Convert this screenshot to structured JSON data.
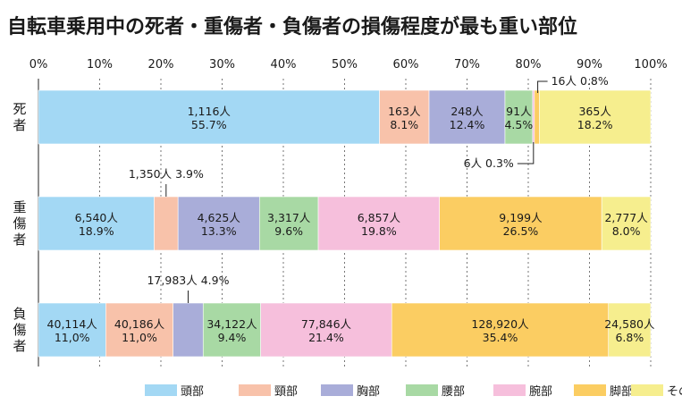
{
  "chart_data": {
    "type": "bar",
    "orientation": "horizontal",
    "stacked": "percent",
    "title": "自転車乗用中の死者・重傷者・負傷者の損傷程度が最も重い部位",
    "xlabel": "",
    "ylabel": "",
    "xlim": [
      0,
      100
    ],
    "x_ticks": [
      "0%",
      "10%",
      "20%",
      "30%",
      "40%",
      "50%",
      "60%",
      "70%",
      "80%",
      "90%",
      "100%"
    ],
    "grid": true,
    "legend_position": "bottom-right",
    "categories": [
      {
        "label": "死者",
        "chars": [
          "死",
          "者"
        ]
      },
      {
        "label": "重傷者",
        "chars": [
          "重",
          "傷",
          "者"
        ]
      },
      {
        "label": "負傷者",
        "chars": [
          "負",
          "傷",
          "者"
        ]
      }
    ],
    "series": [
      {
        "name": "頭部",
        "color": "#a3d8f4",
        "counts": [
          "1,116人",
          "6,540人",
          "40,114人"
        ],
        "percents": [
          55.7,
          18.9,
          11.0
        ],
        "percent_labels": [
          "55.7%",
          "18.9%",
          "11,0%"
        ]
      },
      {
        "name": "頸部",
        "color": "#f8c2aa",
        "counts": [
          "163人",
          "1,350人",
          "40,186人"
        ],
        "percents": [
          8.1,
          3.9,
          11.0
        ],
        "percent_labels": [
          "8.1%",
          "3.9%",
          "11,0%"
        ]
      },
      {
        "name": "胸部",
        "color": "#a9add9",
        "counts": [
          "248人",
          "4,625人",
          "17,983人"
        ],
        "percents": [
          12.4,
          13.3,
          4.9
        ],
        "percent_labels": [
          "12.4%",
          "13.3%",
          "4.9%"
        ]
      },
      {
        "name": "腰部",
        "color": "#a8d9a4",
        "counts": [
          "91人",
          "3,317人",
          "34,122人"
        ],
        "percents": [
          4.5,
          9.6,
          9.4
        ],
        "percent_labels": [
          "4.5%",
          "9.6%",
          "9.4%"
        ]
      },
      {
        "name": "腕部",
        "color": "#f6bfdc",
        "counts": [
          "6人",
          "6,857人",
          "77,846人"
        ],
        "percents": [
          0.3,
          19.8,
          21.4
        ],
        "percent_labels": [
          "0.3%",
          "19.8%",
          "21.4%"
        ]
      },
      {
        "name": "脚部",
        "color": "#fbcd62",
        "counts": [
          "16人",
          "9,199人",
          "128,920人"
        ],
        "percents": [
          0.8,
          26.5,
          35.4
        ],
        "percent_labels": [
          "0.8%",
          "26.5%",
          "35.4%"
        ]
      },
      {
        "name": "その他",
        "color": "#f6ee8e",
        "counts": [
          "365人",
          "2,777人",
          "24,580人"
        ],
        "percents": [
          18.2,
          8.0,
          6.8
        ],
        "percent_labels": [
          "18.2%",
          "8.0%",
          "6.8%"
        ]
      }
    ],
    "callouts": [
      {
        "category": 0,
        "series": 5,
        "text": "16人 0.8%",
        "side": "above"
      },
      {
        "category": 0,
        "series": 4,
        "text": "6人 0.3%",
        "side": "below"
      },
      {
        "category": 1,
        "series": 1,
        "text": "1,350人 3.9%",
        "side": "above"
      },
      {
        "category": 2,
        "series": 2,
        "text": "17,983人  4.9%",
        "side": "above"
      }
    ]
  }
}
